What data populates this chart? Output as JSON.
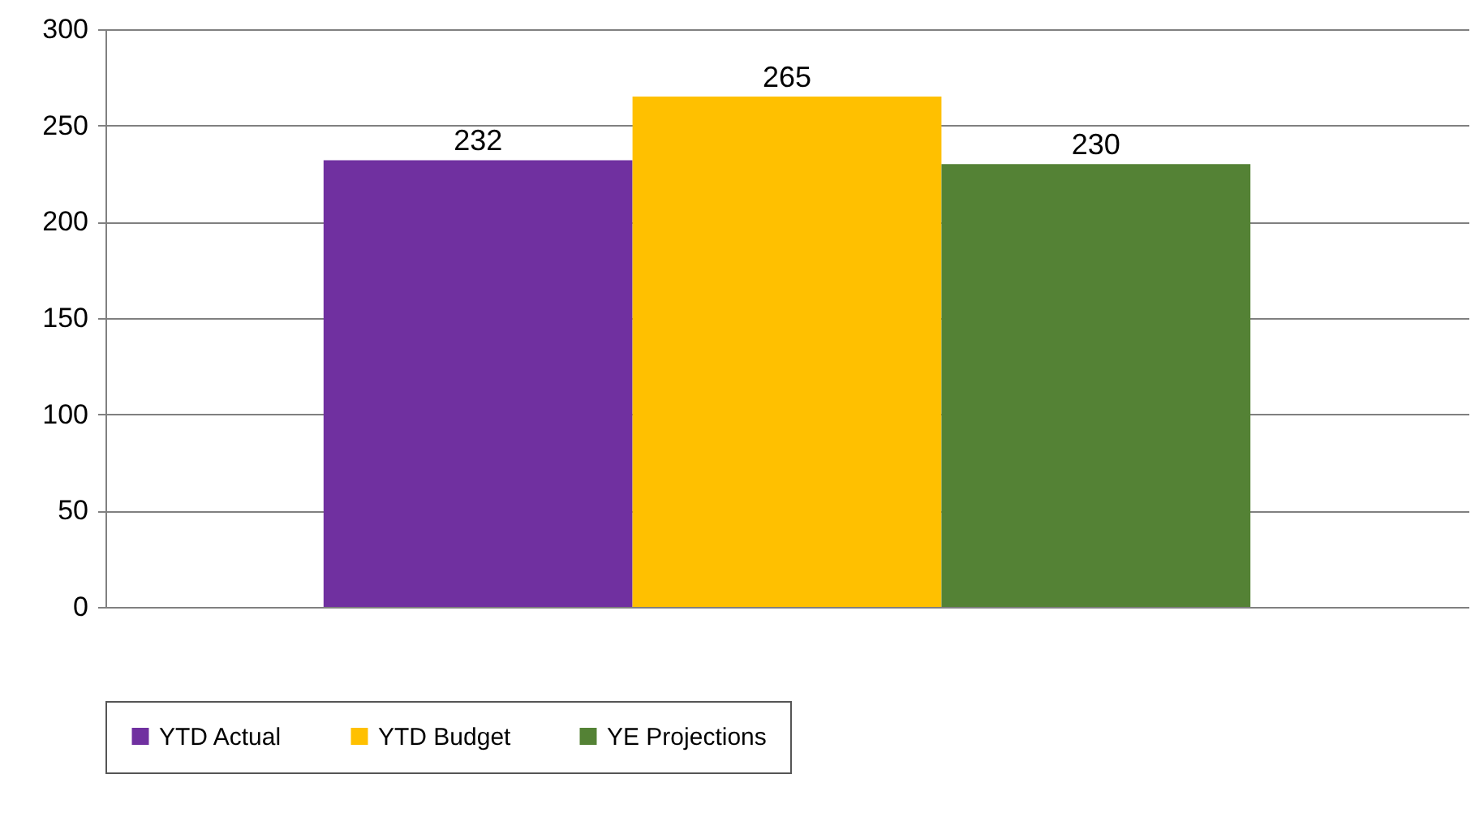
{
  "chart_data": {
    "type": "bar",
    "categories": [
      null
    ],
    "series": [
      {
        "name": "YTD Actual",
        "color": "#7030a0",
        "values": [
          232
        ]
      },
      {
        "name": "YTD Budget",
        "color": "#ffc000",
        "values": [
          265
        ]
      },
      {
        "name": "YE Projections",
        "color": "#548235",
        "values": [
          230
        ]
      }
    ],
    "ylim": [
      0,
      300
    ],
    "yticks": [
      0,
      50,
      100,
      150,
      200,
      250,
      300
    ],
    "grid": "y",
    "legend": "bottom",
    "data_labels": true
  }
}
